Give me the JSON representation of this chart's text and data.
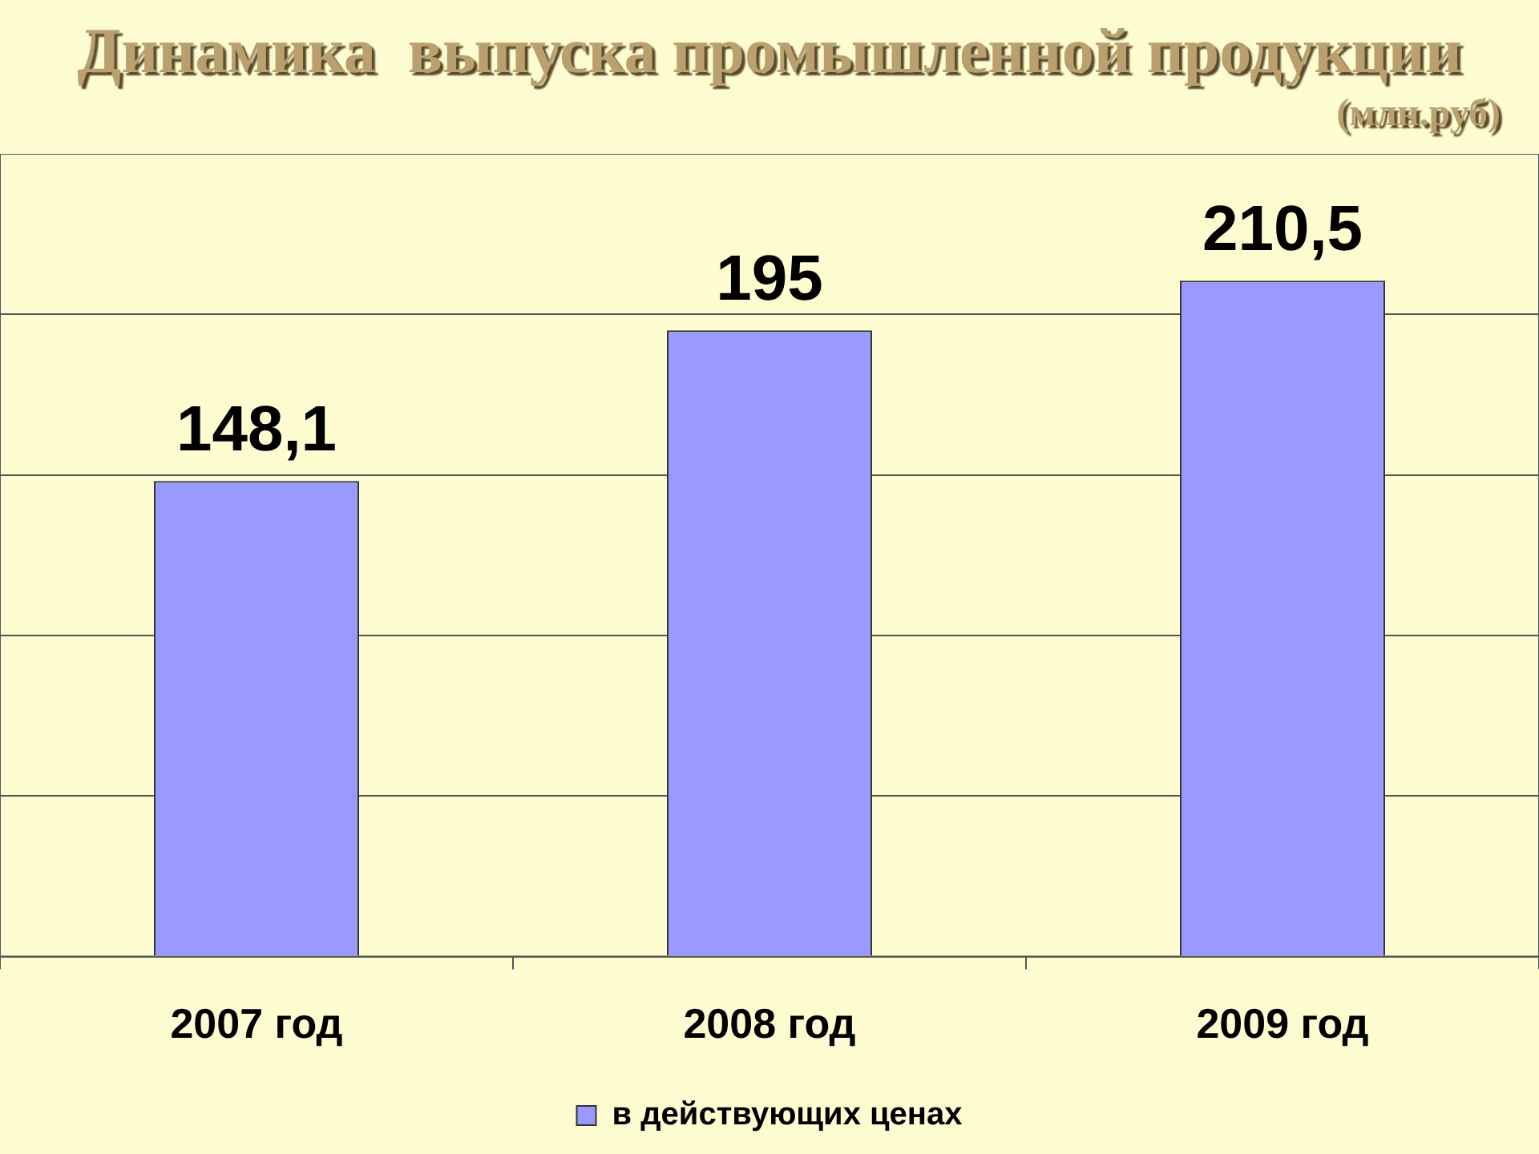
{
  "chart_data": {
    "type": "bar",
    "title": "Динамика  выпуска промышленной продукции",
    "subtitle": "(млн.руб)",
    "categories": [
      "2007 год",
      "2008 год",
      "2009 год"
    ],
    "series": [
      {
        "name": "в действующих ценах",
        "color": "#9999ff",
        "values": [
          148.1,
          195,
          210.5
        ],
        "value_labels": [
          "148,1",
          "195",
          "210,5"
        ]
      }
    ],
    "ylim": [
      0,
      250
    ],
    "yticks": [
      {
        "value": 0,
        "label": null
      },
      {
        "value": 50,
        "label": null
      },
      {
        "value": 100,
        "label": null
      },
      {
        "value": 150,
        "label": null
      },
      {
        "value": 200,
        "label": null
      },
      {
        "value": 250,
        "label": null
      }
    ],
    "tick_labels": "x",
    "grid": "y",
    "legend": "bottom"
  }
}
